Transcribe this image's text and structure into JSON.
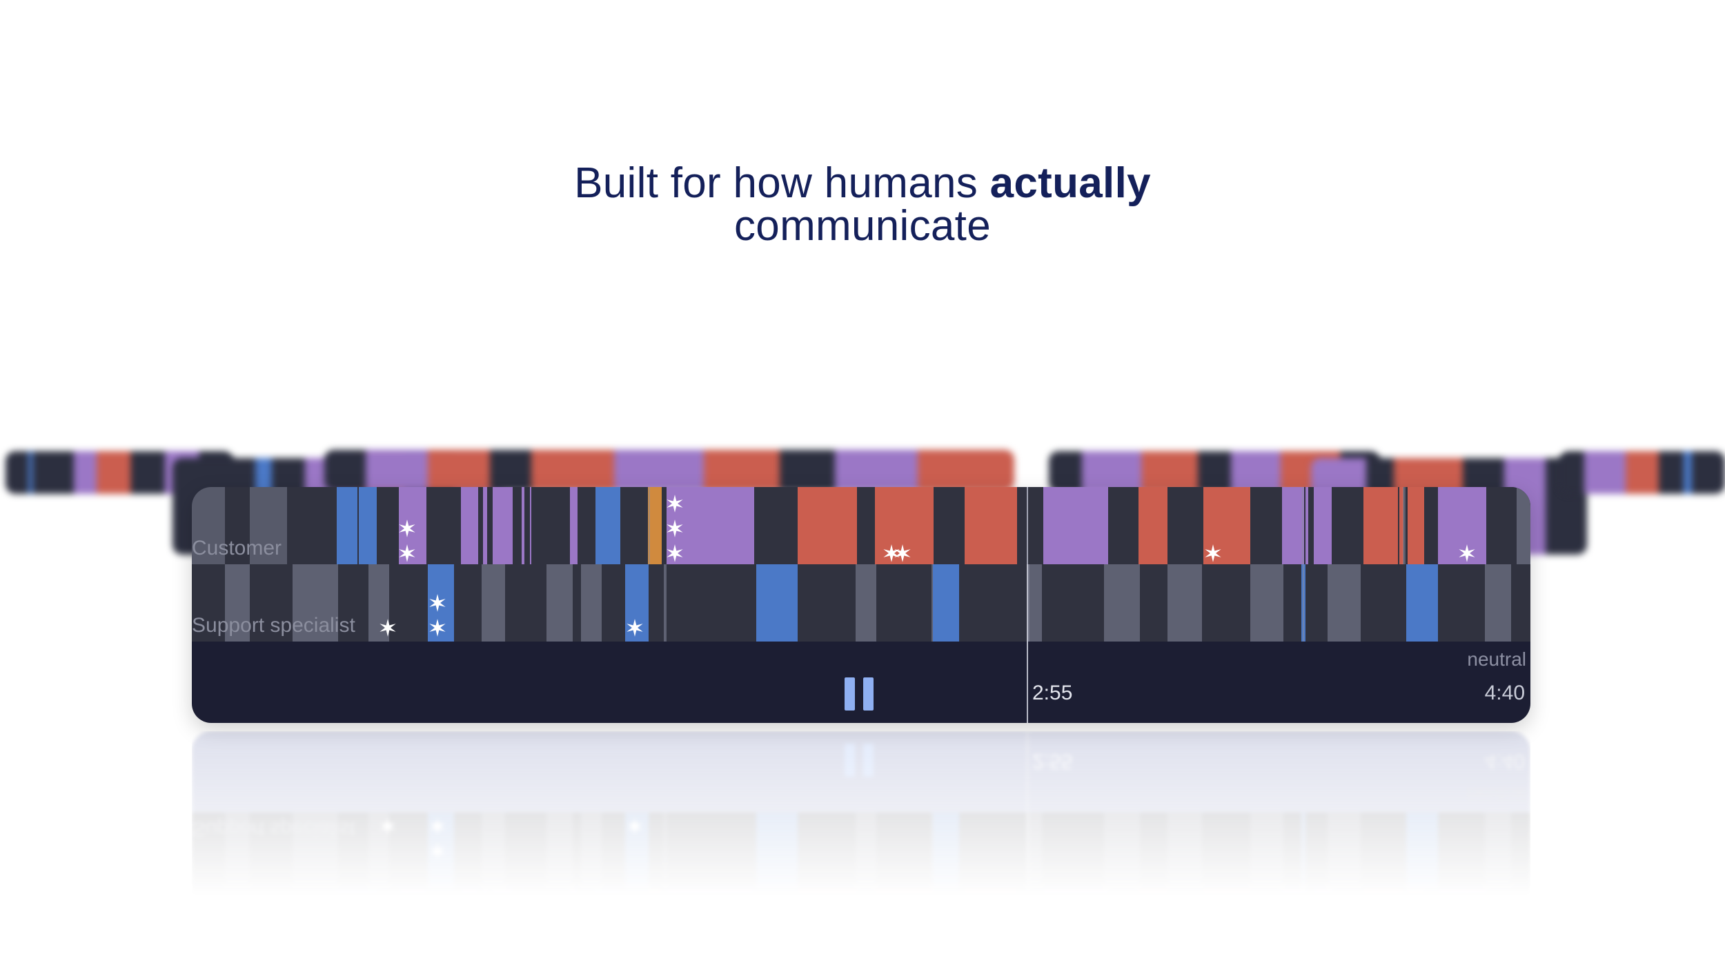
{
  "headline": {
    "line1_regular": "Built for how humans ",
    "line1_bold": "actually",
    "line2": "communicate"
  },
  "player": {
    "lanes": [
      {
        "label": "Customer"
      },
      {
        "label": "Support specialist"
      }
    ],
    "current_time": "2:55",
    "total_time": "4:40",
    "mood_label": "neutral",
    "progress": 0.625,
    "pause_icon": "pause-icon",
    "colors": {
      "purple": "#9b77c6",
      "red": "#cb5e4f",
      "blue": "#4b79c7",
      "orange": "#d08a3e",
      "gray": "#5e6172",
      "dark": "#30323f",
      "panel": "#1c1e33"
    }
  }
}
